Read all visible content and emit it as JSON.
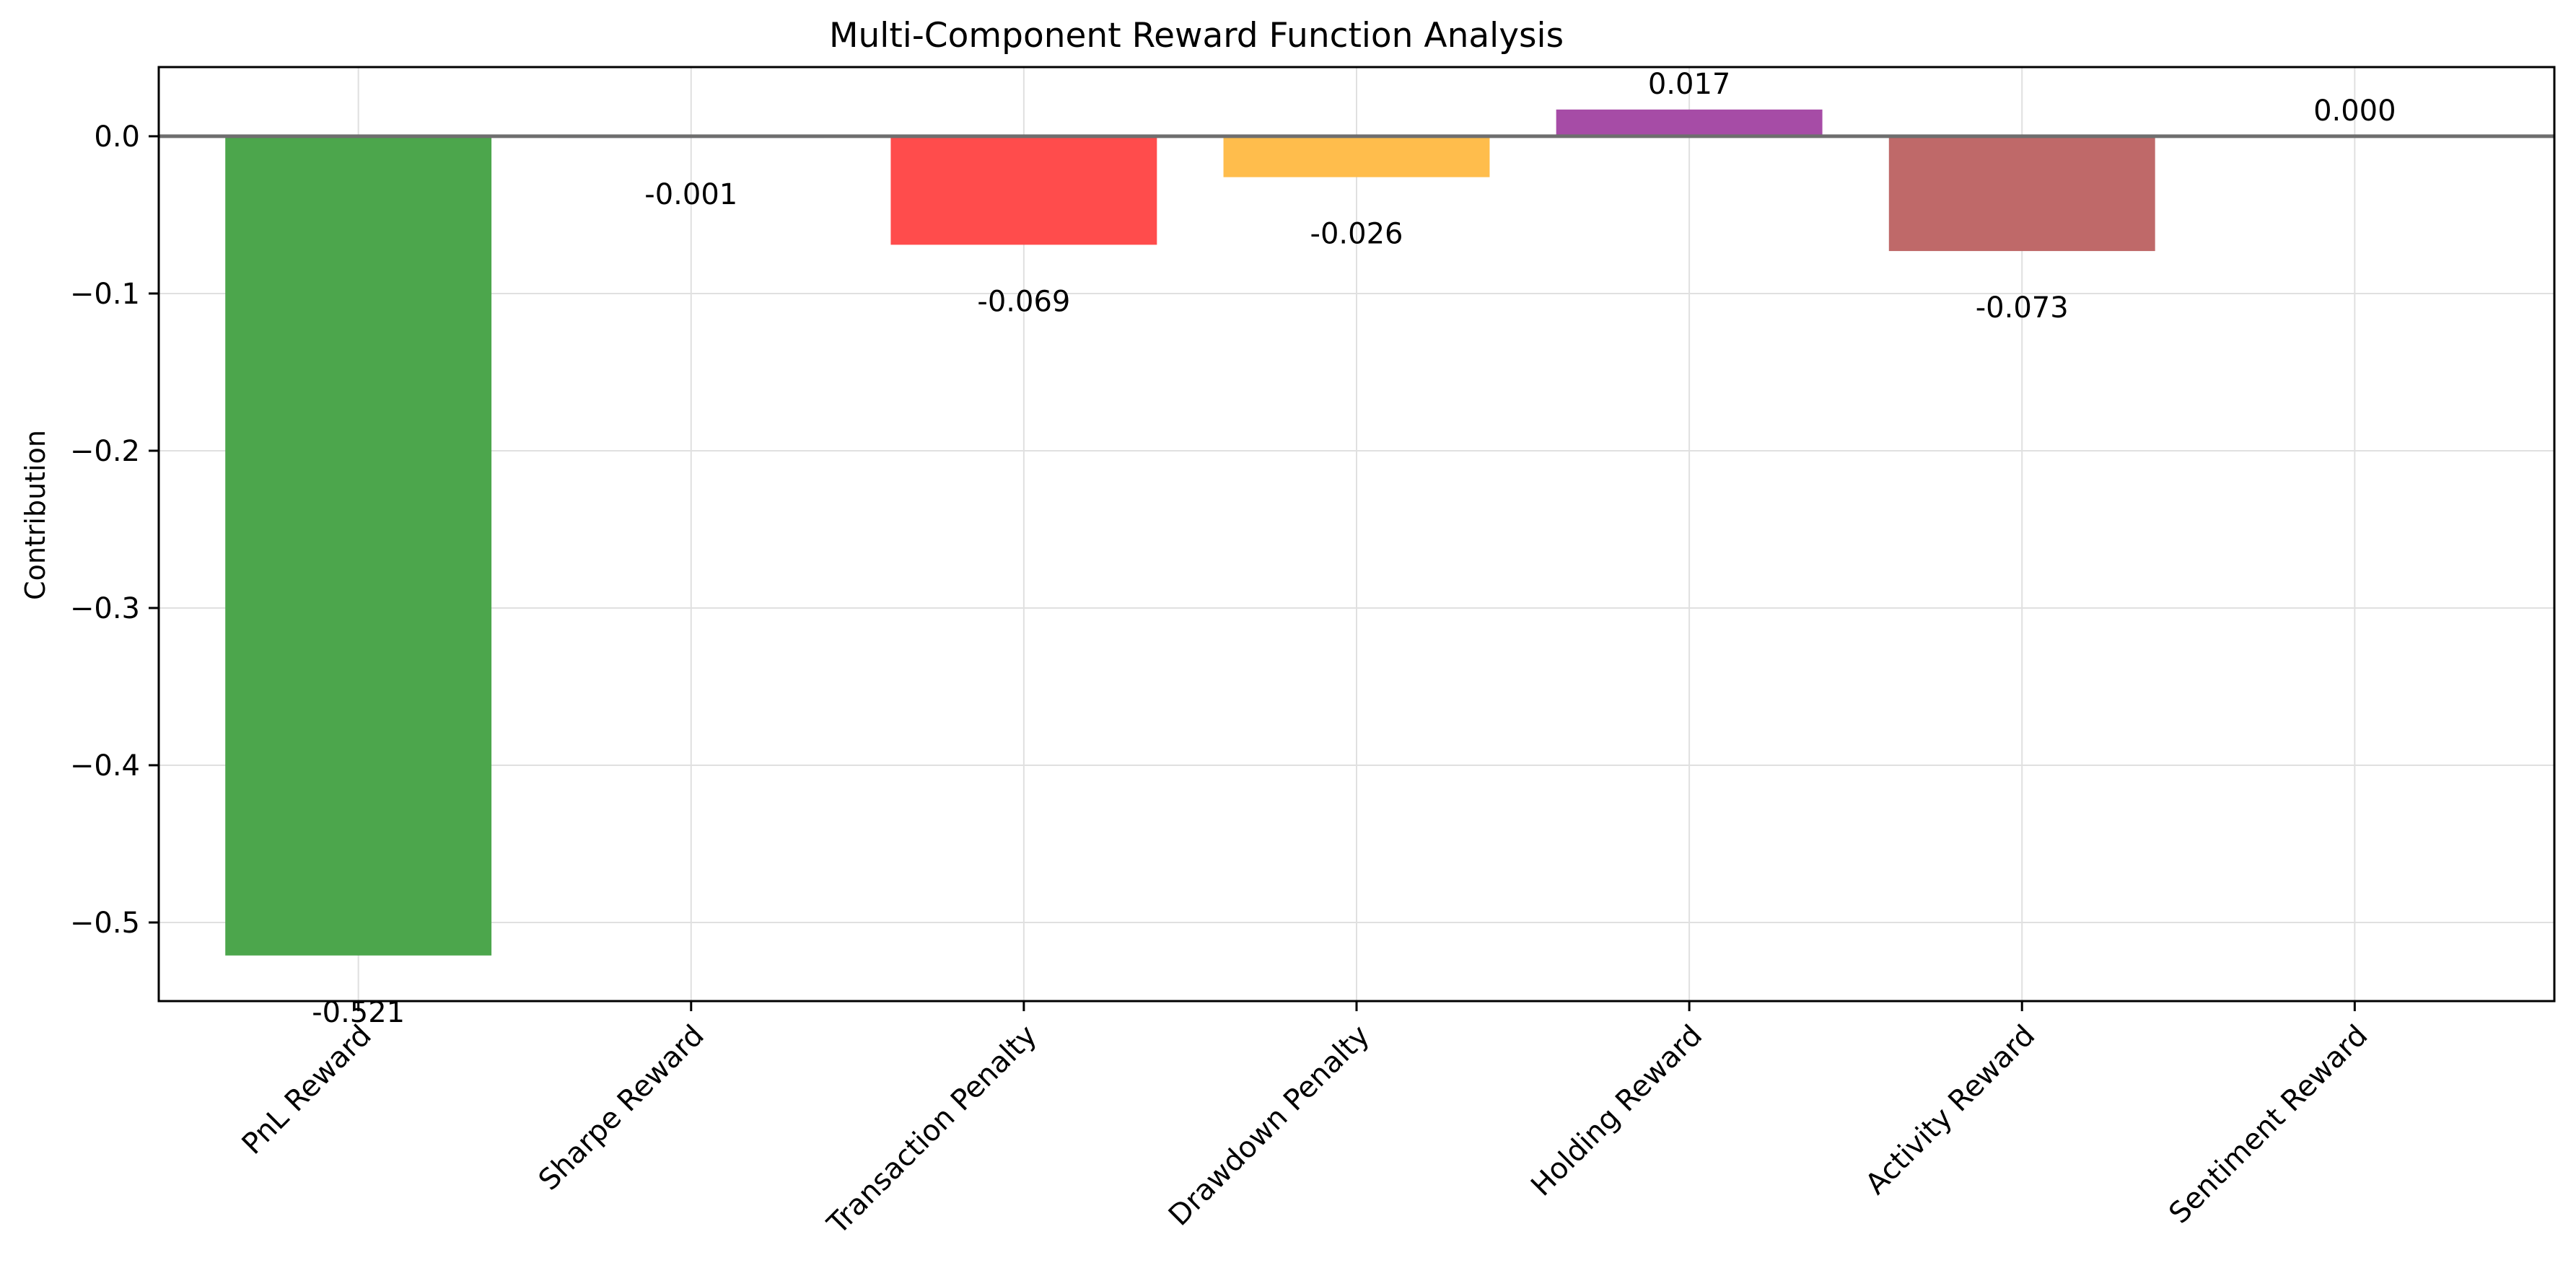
{
  "chart_data": {
    "type": "bar",
    "title": "Multi-Component Reward Function Analysis",
    "xlabel": "",
    "ylabel": "Contribution",
    "categories": [
      "PnL Reward",
      "Sharpe Reward",
      "Transaction Penalty",
      "Drawdown Penalty",
      "Holding Reward",
      "Activity Reward",
      "Sentiment Reward"
    ],
    "values": [
      -0.521,
      -0.001,
      -0.069,
      -0.026,
      0.017,
      -0.073,
      0.0
    ],
    "value_labels": [
      "-0.521",
      "-0.001",
      "-0.069",
      "-0.026",
      "0.017",
      "-0.073",
      "0.000"
    ],
    "colors": [
      "#4ca64c",
      "#4c4cff",
      "#ff4c4c",
      "#ffbd4c",
      "#a64ca6",
      "#bf6969",
      "#a0a0a0"
    ],
    "ylim": [
      -0.55,
      0.044
    ],
    "yticks": [
      0.0,
      -0.1,
      -0.2,
      -0.3,
      -0.4,
      -0.5
    ],
    "ytick_labels": [
      "0.0",
      "−0.1",
      "−0.2",
      "−0.3",
      "−0.4",
      "−0.5"
    ],
    "grid": true,
    "legend": "none"
  }
}
